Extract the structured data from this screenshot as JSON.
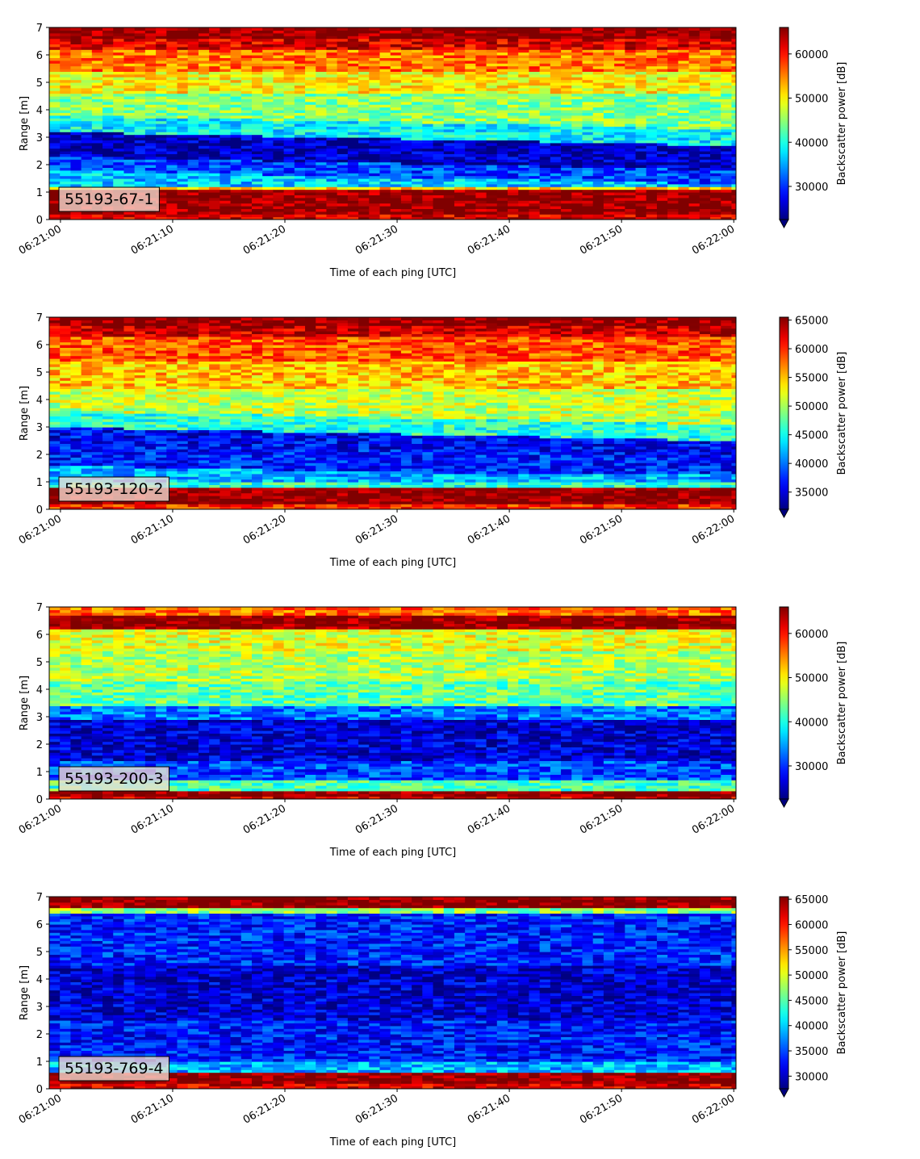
{
  "chart_data": [
    {
      "type": "heatmap",
      "label": "55193-67-1",
      "xlabel": "Time of each ping [UTC]",
      "ylabel": "Range [m]",
      "x_ticks": [
        "06:21:00",
        "06:21:10",
        "06:21:20",
        "06:21:30",
        "06:21:40",
        "06:21:50",
        "06:22:00"
      ],
      "x_range_s": [
        -1,
        60.2
      ],
      "y_ticks": [
        "0",
        "1",
        "2",
        "3",
        "4",
        "5",
        "6",
        "7"
      ],
      "ylim": [
        0,
        7
      ],
      "colorbar_label": "Backscatter power [dB]",
      "colorbar_ticks": [
        "30000",
        "40000",
        "50000",
        "60000"
      ],
      "clim": [
        22500,
        66000
      ],
      "colormap": "jet",
      "bands": [
        {
          "y": [
            0.0,
            0.25
          ],
          "value": 62000
        },
        {
          "y": [
            0.25,
            1.1
          ],
          "value": 65500
        },
        {
          "y": [
            1.1,
            1.25
          ],
          "value": 52000
        },
        {
          "y": [
            1.25,
            1.8
          ],
          "value": 36500
        },
        {
          "y": [
            1.8,
            2.3
          ],
          "value": 31000
        },
        {
          "y": [
            2.3,
            3.2
          ],
          "value": 25000
        },
        {
          "y": [
            3.2,
            3.8
          ],
          "value": 38500
        },
        {
          "y": [
            3.8,
            4.6
          ],
          "value": 44500
        },
        {
          "y": [
            4.6,
            5.4
          ],
          "value": 50000
        },
        {
          "y": [
            5.4,
            6.2
          ],
          "value": 55500
        },
        {
          "y": [
            6.2,
            6.55
          ],
          "value": 62000
        },
        {
          "y": [
            6.55,
            7.0
          ],
          "value": 65500
        }
      ]
    },
    {
      "type": "heatmap",
      "label": "55193-120-2",
      "xlabel": "Time of each ping [UTC]",
      "ylabel": "Range [m]",
      "x_ticks": [
        "06:21:00",
        "06:21:10",
        "06:21:20",
        "06:21:30",
        "06:21:40",
        "06:21:50",
        "06:22:00"
      ],
      "x_range_s": [
        -1,
        60.2
      ],
      "y_ticks": [
        "0",
        "1",
        "2",
        "3",
        "4",
        "5",
        "6",
        "7"
      ],
      "ylim": [
        0,
        7
      ],
      "colorbar_label": "Backscatter power [dB]",
      "colorbar_ticks": [
        "35000",
        "40000",
        "45000",
        "50000",
        "55000",
        "60000",
        "65000"
      ],
      "clim": [
        32000,
        65500
      ],
      "colormap": "jet",
      "bands": [
        {
          "y": [
            0.0,
            0.2
          ],
          "value": 60000
        },
        {
          "y": [
            0.2,
            0.85
          ],
          "value": 65500
        },
        {
          "y": [
            0.85,
            1.0
          ],
          "value": 46000
        },
        {
          "y": [
            1.0,
            1.6
          ],
          "value": 42000
        },
        {
          "y": [
            1.6,
            2.4
          ],
          "value": 37000
        },
        {
          "y": [
            2.4,
            3.0
          ],
          "value": 36000
        },
        {
          "y": [
            3.0,
            3.6
          ],
          "value": 46000
        },
        {
          "y": [
            3.6,
            4.4
          ],
          "value": 51000
        },
        {
          "y": [
            4.4,
            5.4
          ],
          "value": 55000
        },
        {
          "y": [
            5.4,
            6.3
          ],
          "value": 58500
        },
        {
          "y": [
            6.3,
            6.7
          ],
          "value": 63000
        },
        {
          "y": [
            6.7,
            7.0
          ],
          "value": 65500
        }
      ]
    },
    {
      "type": "heatmap",
      "label": "55193-200-3",
      "xlabel": "Time of each ping [UTC]",
      "ylabel": "Range [m]",
      "x_ticks": [
        "06:21:00",
        "06:21:10",
        "06:21:20",
        "06:21:30",
        "06:21:40",
        "06:21:50",
        "06:22:00"
      ],
      "x_range_s": [
        -1,
        60.2
      ],
      "y_ticks": [
        "0",
        "1",
        "2",
        "3",
        "4",
        "5",
        "6",
        "7"
      ],
      "ylim": [
        0,
        7
      ],
      "colorbar_label": "Backscatter power [dB]",
      "colorbar_ticks": [
        "30000",
        "40000",
        "50000",
        "60000"
      ],
      "clim": [
        22500,
        66000
      ],
      "colormap": "jet",
      "bands": [
        {
          "y": [
            0.0,
            0.15
          ],
          "value": 62000
        },
        {
          "y": [
            0.15,
            0.35
          ],
          "value": 66000
        },
        {
          "y": [
            0.35,
            0.7
          ],
          "value": 42000
        },
        {
          "y": [
            0.7,
            1.4
          ],
          "value": 31000
        },
        {
          "y": [
            1.4,
            2.9
          ],
          "value": 26000
        },
        {
          "y": [
            2.9,
            3.4
          ],
          "value": 33000
        },
        {
          "y": [
            3.4,
            4.3
          ],
          "value": 43000
        },
        {
          "y": [
            4.3,
            5.4
          ],
          "value": 46500
        },
        {
          "y": [
            5.4,
            6.2
          ],
          "value": 48500
        },
        {
          "y": [
            6.2,
            6.7
          ],
          "value": 65500
        },
        {
          "y": [
            6.7,
            7.0
          ],
          "value": 56000
        }
      ]
    },
    {
      "type": "heatmap",
      "label": "55193-769-4",
      "xlabel": "Time of each ping [UTC]",
      "ylabel": "Range [m]",
      "x_ticks": [
        "06:21:00",
        "06:21:10",
        "06:21:20",
        "06:21:30",
        "06:21:40",
        "06:21:50",
        "06:22:00"
      ],
      "x_range_s": [
        -1,
        60.2
      ],
      "y_ticks": [
        "0",
        "1",
        "2",
        "3",
        "4",
        "5",
        "6",
        "7"
      ],
      "ylim": [
        0,
        7
      ],
      "colorbar_label": "Backscatter power [dB]",
      "colorbar_ticks": [
        "30000",
        "35000",
        "40000",
        "45000",
        "50000",
        "55000",
        "60000",
        "65000"
      ],
      "clim": [
        27500,
        65500
      ],
      "colormap": "jet",
      "bands": [
        {
          "y": [
            0.0,
            0.25
          ],
          "value": 62000
        },
        {
          "y": [
            0.25,
            0.65
          ],
          "value": 65500
        },
        {
          "y": [
            0.65,
            1.0
          ],
          "value": 39000
        },
        {
          "y": [
            1.0,
            2.5
          ],
          "value": 33000
        },
        {
          "y": [
            2.5,
            4.5
          ],
          "value": 30500
        },
        {
          "y": [
            4.5,
            6.4
          ],
          "value": 33500
        },
        {
          "y": [
            6.4,
            6.55
          ],
          "value": 47000
        },
        {
          "y": [
            6.55,
            7.0
          ],
          "value": 65500
        }
      ]
    }
  ]
}
